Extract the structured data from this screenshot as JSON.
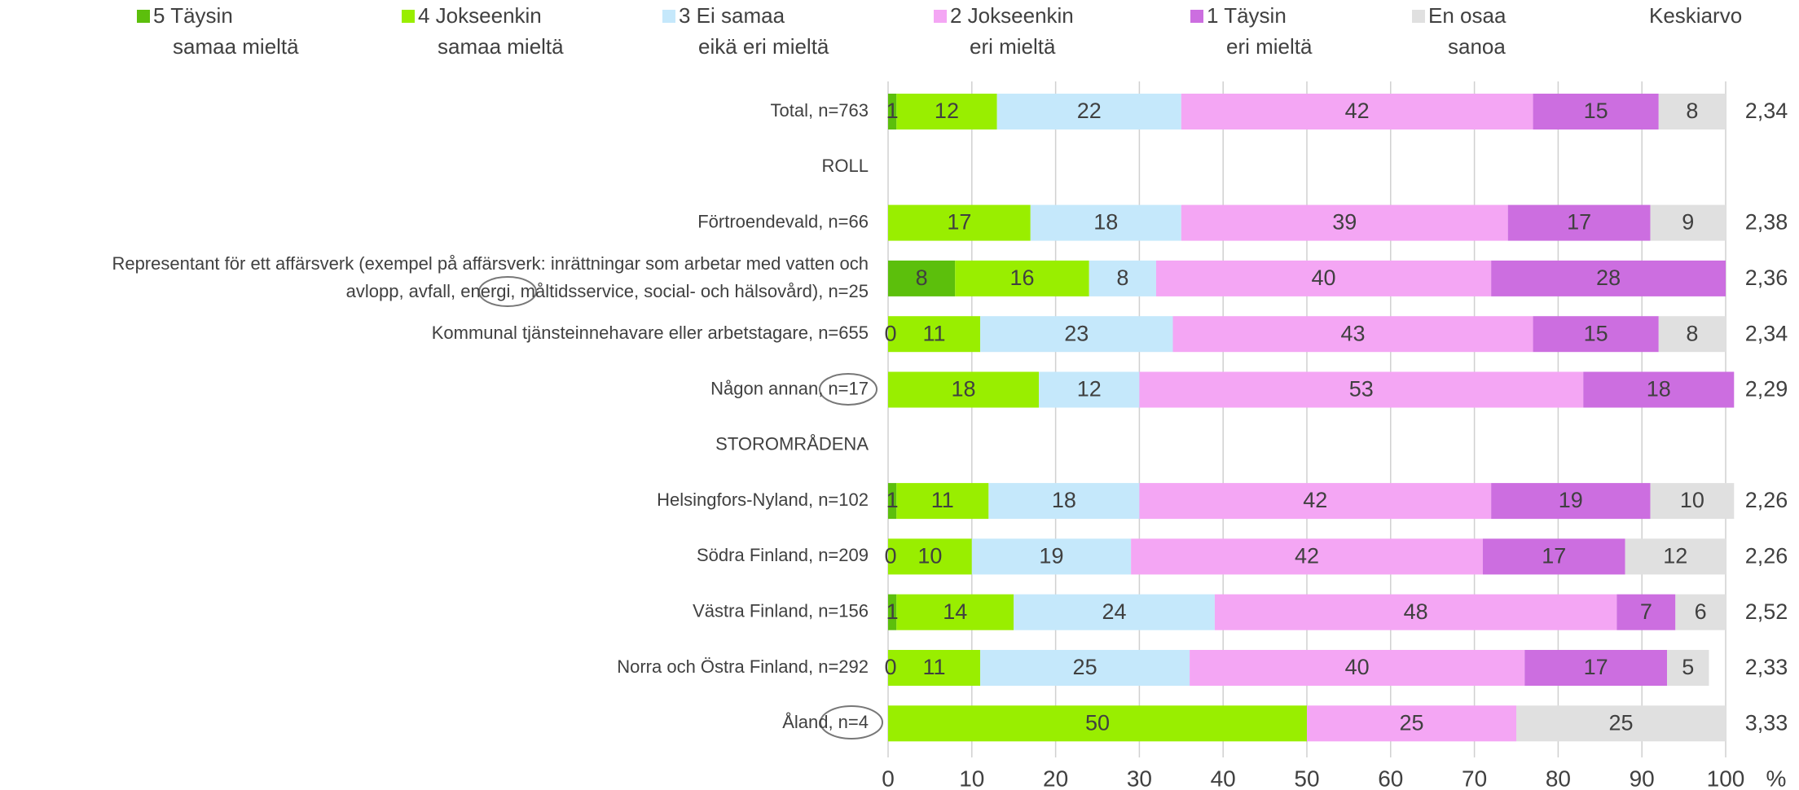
{
  "chart_data": {
    "type": "stacked-bar-horizontal",
    "categories": [
      "Total, n=763",
      "ROLL",
      "Förtroendevald, n=66",
      "Representant för ett affärsverk (exempel på affärsverk: inrättningar som arbetar med vatten och\navlopp, avfall, energi, måltidsservice, social- och hälsovård), n=25",
      "Kommunal tjänsteinnehavare eller arbetstagare, n=655",
      "Någon annan, n=17",
      "STOROMRÅDENA",
      "Helsingfors-Nyland, n=102",
      "Södra Finland, n=209",
      "Västra Finland, n=156",
      "Norra och Östra Finland, n=292",
      "Åland, n=4"
    ],
    "series": [
      {
        "name": "5 Täysin\nsamaa mieltä",
        "color": "#5cbf0c",
        "values": [
          1,
          null,
          null,
          8,
          0,
          null,
          null,
          1,
          0,
          1,
          0,
          null
        ]
      },
      {
        "name": "4 Jokseenkin\nsamaa mieltä",
        "color": "#99ee00",
        "values": [
          12,
          null,
          17,
          16,
          11,
          18,
          null,
          11,
          10,
          14,
          11,
          50
        ]
      },
      {
        "name": "3 Ei samaa\neikä eri mieltä",
        "color": "#c5e8fb",
        "values": [
          22,
          null,
          18,
          8,
          23,
          12,
          null,
          18,
          19,
          24,
          25,
          null
        ]
      },
      {
        "name": "2 Jokseenkin\neri mieltä",
        "color": "#f4a6f4",
        "values": [
          42,
          null,
          39,
          40,
          43,
          53,
          null,
          42,
          42,
          48,
          40,
          25
        ]
      },
      {
        "name": "1 Täysin\neri mieltä",
        "color": "#cc6ee0",
        "values": [
          15,
          null,
          17,
          28,
          15,
          18,
          null,
          19,
          17,
          7,
          17,
          null
        ]
      },
      {
        "name": "En osaa\nsanoa",
        "color": "#e0e0e0",
        "values": [
          8,
          null,
          9,
          null,
          8,
          null,
          null,
          10,
          12,
          6,
          5,
          25
        ]
      }
    ],
    "mean": {
      "name": "Keskiarvo",
      "values": [
        2.34,
        null,
        2.38,
        2.36,
        2.34,
        2.29,
        null,
        2.26,
        2.26,
        2.52,
        2.33,
        3.33
      ],
      "value_labels": [
        "2,34",
        null,
        "2,38",
        "2,36",
        "2,34",
        "2,29",
        null,
        "2,26",
        "2,26",
        "2,52",
        "2,33",
        "3,33"
      ]
    },
    "xlim": [
      0,
      100
    ],
    "xticks": [
      0,
      10,
      20,
      30,
      40,
      50,
      60,
      70,
      80,
      90,
      100
    ],
    "x_label": "%",
    "grid": true
  }
}
